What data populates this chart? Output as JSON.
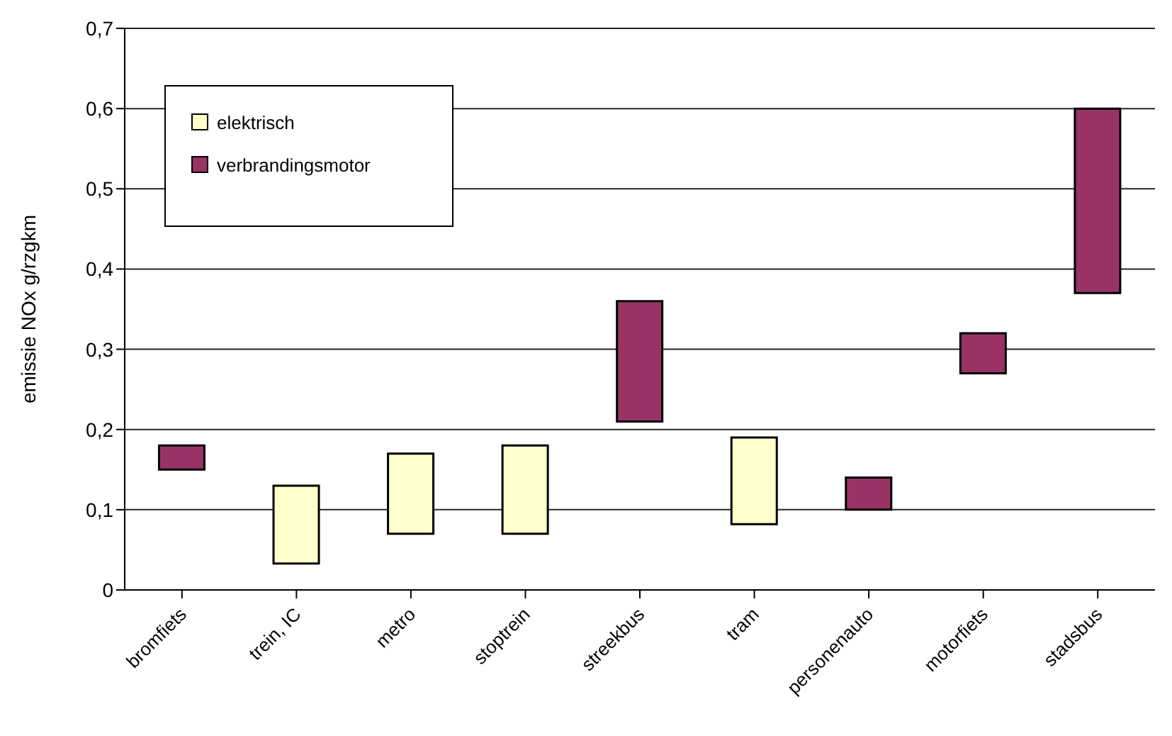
{
  "chart_data": {
    "type": "bar",
    "ylabel": "emissie NOx g/rzgkm",
    "categories": [
      "bromfiets",
      "trein, IC",
      "metro",
      "stoptrein",
      "streekbus",
      "tram",
      "personenauto",
      "motorfiets",
      "stadsbus"
    ],
    "series": [
      {
        "name": "elektrisch",
        "color": "#ffffcc",
        "base": [
          null,
          0.033,
          0.07,
          0.07,
          null,
          0.082,
          null,
          null,
          null
        ],
        "values": [
          null,
          0.097,
          0.1,
          0.11,
          null,
          0.108,
          null,
          null,
          null
        ]
      },
      {
        "name": "verbrandingsmotor",
        "color": "#993366",
        "base": [
          0.15,
          null,
          null,
          null,
          0.21,
          null,
          0.1,
          0.27,
          0.37
        ],
        "values": [
          0.03,
          null,
          null,
          null,
          0.15,
          null,
          0.04,
          0.05,
          0.23
        ]
      }
    ],
    "ylim": [
      0,
      0.7
    ],
    "yticks": [
      {
        "value": 0,
        "label": "0"
      },
      {
        "value": 0.1,
        "label": "0,1"
      },
      {
        "value": 0.2,
        "label": "0,2"
      },
      {
        "value": 0.3,
        "label": "0,3"
      },
      {
        "value": 0.4,
        "label": "0,4"
      },
      {
        "value": 0.5,
        "label": "0,5"
      },
      {
        "value": 0.6,
        "label": "0,6"
      },
      {
        "value": 0.7,
        "label": "0,7"
      }
    ],
    "grid": "y",
    "legend": "top left"
  }
}
